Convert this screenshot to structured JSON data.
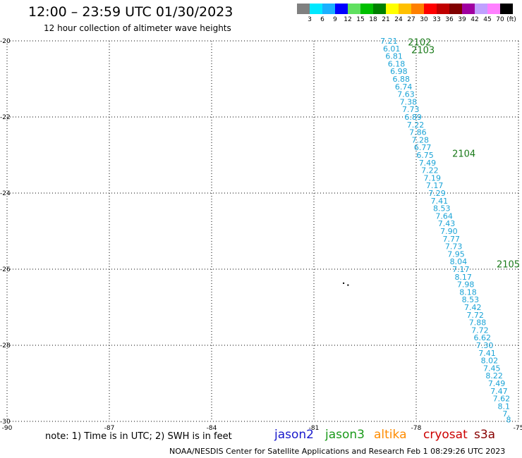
{
  "header": {
    "title": "12:00 – 23:59 UTC 01/30/2023",
    "subtitle": "12 hour collection of altimeter wave heights"
  },
  "colorbar": {
    "unit": "(ft)",
    "colors": [
      "#808080",
      "#00e8ff",
      "#1ab0ff",
      "#0000ff",
      "#60e060",
      "#00c000",
      "#008000",
      "#ffff00",
      "#ffc000",
      "#ff8000",
      "#ff0000",
      "#c00000",
      "#800000",
      "#a000a0",
      "#c0a0ff",
      "#ff80ff",
      "#000000"
    ],
    "labels": [
      "3",
      "6",
      "9",
      "12",
      "15",
      "18",
      "21",
      "24",
      "27",
      "30",
      "33",
      "36",
      "39",
      "42",
      "45",
      "70"
    ]
  },
  "map": {
    "lat_labels": [
      "-20",
      "-22",
      "-24",
      "-26",
      "-28",
      "-30"
    ],
    "lon_labels": [
      "-90",
      "-87",
      "-84",
      "-81",
      "-78",
      "-75"
    ],
    "grid_lats": [
      -20,
      -22,
      -24,
      -26,
      -28,
      -30
    ],
    "grid_lons": [
      -90,
      -87,
      -84,
      -81,
      -78,
      -75
    ],
    "lat_range": [
      -30,
      -20
    ],
    "lon_range": [
      -90,
      -75
    ],
    "track_labels": [
      {
        "text": "2102",
        "lat": -20.05,
        "lon": -77.9
      },
      {
        "text": "2103",
        "lat": -20.25,
        "lon": -77.8
      },
      {
        "text": "2104",
        "lat": -22.97,
        "lon": -76.6
      },
      {
        "text": "2105",
        "lat": -25.88,
        "lon": -75.3
      }
    ],
    "swh_points": [
      {
        "lat": -20.0,
        "lon": -78.8,
        "value": "7.21"
      },
      {
        "lat": -20.2,
        "lon": -78.72,
        "value": "6.01"
      },
      {
        "lat": -20.4,
        "lon": -78.65,
        "value": "6.81"
      },
      {
        "lat": -20.6,
        "lon": -78.58,
        "value": "6.18"
      },
      {
        "lat": -20.8,
        "lon": -78.51,
        "value": "6.98"
      },
      {
        "lat": -21.0,
        "lon": -78.44,
        "value": "6.88"
      },
      {
        "lat": -21.2,
        "lon": -78.37,
        "value": "6.74"
      },
      {
        "lat": -21.4,
        "lon": -78.3,
        "value": "7.63"
      },
      {
        "lat": -21.6,
        "lon": -78.23,
        "value": "7.38"
      },
      {
        "lat": -21.8,
        "lon": -78.16,
        "value": "7.73"
      },
      {
        "lat": -22.0,
        "lon": -78.09,
        "value": "6.89"
      },
      {
        "lat": -22.2,
        "lon": -78.02,
        "value": "7.22"
      },
      {
        "lat": -22.4,
        "lon": -77.95,
        "value": "7.86"
      },
      {
        "lat": -22.6,
        "lon": -77.88,
        "value": "7.28"
      },
      {
        "lat": -22.8,
        "lon": -77.81,
        "value": "6.77"
      },
      {
        "lat": -23.0,
        "lon": -77.74,
        "value": "6.75"
      },
      {
        "lat": -23.2,
        "lon": -77.67,
        "value": "7.49"
      },
      {
        "lat": -23.4,
        "lon": -77.6,
        "value": "7.22"
      },
      {
        "lat": -23.6,
        "lon": -77.53,
        "value": "7.19"
      },
      {
        "lat": -23.8,
        "lon": -77.46,
        "value": "7.17"
      },
      {
        "lat": -24.0,
        "lon": -77.39,
        "value": "7.29"
      },
      {
        "lat": -24.2,
        "lon": -77.32,
        "value": "7.41"
      },
      {
        "lat": -24.4,
        "lon": -77.25,
        "value": "8.53"
      },
      {
        "lat": -24.6,
        "lon": -77.18,
        "value": "7.64"
      },
      {
        "lat": -24.8,
        "lon": -77.11,
        "value": "7.43"
      },
      {
        "lat": -25.0,
        "lon": -77.04,
        "value": "7.90"
      },
      {
        "lat": -25.2,
        "lon": -76.97,
        "value": "7.77"
      },
      {
        "lat": -25.4,
        "lon": -76.9,
        "value": "7.73"
      },
      {
        "lat": -25.6,
        "lon": -76.83,
        "value": "7.95"
      },
      {
        "lat": -25.8,
        "lon": -76.76,
        "value": "8.04"
      },
      {
        "lat": -26.0,
        "lon": -76.69,
        "value": "7.17"
      },
      {
        "lat": -26.2,
        "lon": -76.62,
        "value": "8.17"
      },
      {
        "lat": -26.4,
        "lon": -76.55,
        "value": "7.98"
      },
      {
        "lat": -26.6,
        "lon": -76.48,
        "value": "8.18"
      },
      {
        "lat": -26.8,
        "lon": -76.41,
        "value": "8.53"
      },
      {
        "lat": -27.0,
        "lon": -76.34,
        "value": "7.42"
      },
      {
        "lat": -27.2,
        "lon": -76.27,
        "value": "7.72"
      },
      {
        "lat": -27.4,
        "lon": -76.2,
        "value": "7.88"
      },
      {
        "lat": -27.6,
        "lon": -76.13,
        "value": "7.72"
      },
      {
        "lat": -27.8,
        "lon": -76.06,
        "value": "6.62"
      },
      {
        "lat": -28.0,
        "lon": -75.99,
        "value": "7.30"
      },
      {
        "lat": -28.2,
        "lon": -75.92,
        "value": "7.41"
      },
      {
        "lat": -28.4,
        "lon": -75.85,
        "value": "8.02"
      },
      {
        "lat": -28.6,
        "lon": -75.78,
        "value": "7.45"
      },
      {
        "lat": -28.8,
        "lon": -75.71,
        "value": "8.22"
      },
      {
        "lat": -29.0,
        "lon": -75.64,
        "value": "7.49"
      },
      {
        "lat": -29.2,
        "lon": -75.57,
        "value": "7.47"
      },
      {
        "lat": -29.4,
        "lon": -75.5,
        "value": "7.62"
      },
      {
        "lat": -29.6,
        "lon": -75.43,
        "value": "8.1"
      },
      {
        "lat": -29.8,
        "lon": -75.36,
        "value": "7."
      },
      {
        "lat": -29.95,
        "lon": -75.29,
        "value": "8"
      }
    ],
    "island_marks": [
      {
        "lat": -26.35,
        "lon": -80.15
      },
      {
        "lat": -26.4,
        "lon": -80.02
      }
    ]
  },
  "footer": {
    "note": "note:  1) Time is in UTC;  2) SWH is in feet",
    "missions": [
      {
        "name": "jason2",
        "color": "#1a1acc"
      },
      {
        "name": "jason3",
        "color": "#1a9a1a"
      },
      {
        "name": "altika",
        "color": "#ff8c00"
      },
      {
        "name": "cryosat",
        "color": "#cc0000"
      },
      {
        "name": "s3a",
        "color": "#880000"
      }
    ],
    "credit": "NOAA/NESDIS Center for Satellite Applications and Research    Feb  1 08:29:26 UTC 2023"
  }
}
